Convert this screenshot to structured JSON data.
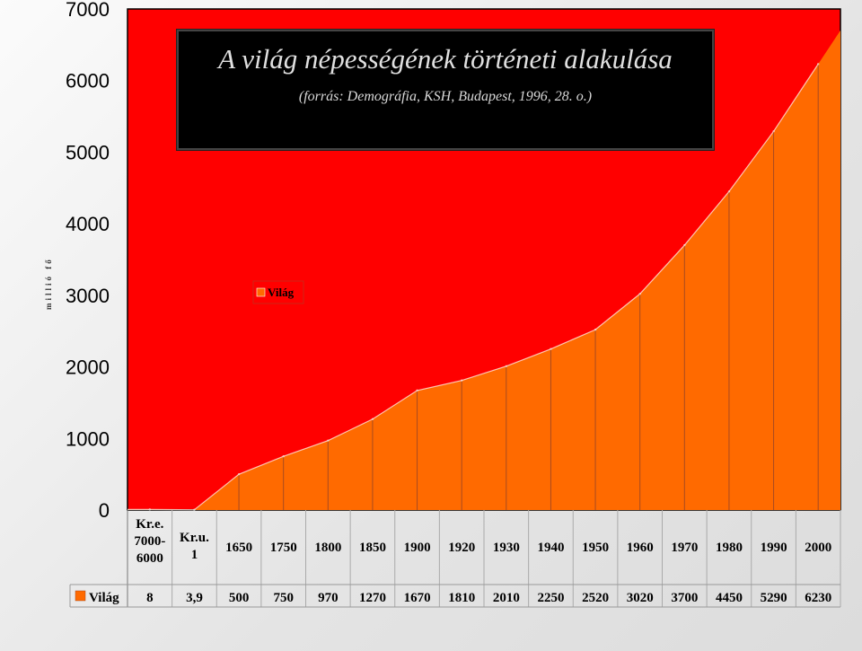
{
  "chart_data": {
    "type": "area",
    "title": "A világ népességének történeti alakulása",
    "subtitle": "(forrás: Demográfia, KSH, Budapest, 1996, 28. o.)",
    "ylabel": "millió fő",
    "xlabel": "",
    "ylim": [
      0,
      7000
    ],
    "yticks": [
      0,
      1000,
      2000,
      3000,
      4000,
      5000,
      6000,
      7000
    ],
    "categories": [
      "Kr.e. 7000-6000",
      "Kr.u. 1",
      "1650",
      "1750",
      "1800",
      "1850",
      "1900",
      "1920",
      "1930",
      "1940",
      "1950",
      "1960",
      "1970",
      "1980",
      "1990",
      "2000"
    ],
    "category_lines": [
      [
        "Kr.e.",
        "7000-",
        "6000"
      ],
      [
        "Kr.u.",
        "1"
      ],
      [
        "1650"
      ],
      [
        "1750"
      ],
      [
        "1800"
      ],
      [
        "1850"
      ],
      [
        "1900"
      ],
      [
        "1920"
      ],
      [
        "1930"
      ],
      [
        "1940"
      ],
      [
        "1950"
      ],
      [
        "1960"
      ],
      [
        "1970"
      ],
      [
        "1980"
      ],
      [
        "1990"
      ],
      [
        "2000"
      ]
    ],
    "series": [
      {
        "name": "Világ",
        "values": [
          8,
          3.9,
          500,
          750,
          970,
          1270,
          1670,
          1810,
          2010,
          2250,
          2520,
          3020,
          3700,
          4450,
          5290,
          6230
        ],
        "value_labels": [
          "8",
          "3,9",
          "500",
          "750",
          "970",
          "1270",
          "1670",
          "1810",
          "2010",
          "2250",
          "2520",
          "3020",
          "3700",
          "4450",
          "5290",
          "6230"
        ]
      }
    ],
    "legend": "center",
    "grid": false,
    "data_table": true,
    "colors": {
      "plot_background": "#ff0000",
      "area_fill": "#ff6a00",
      "area_stroke": "#ffffff",
      "divider": "#a84a20"
    }
  }
}
